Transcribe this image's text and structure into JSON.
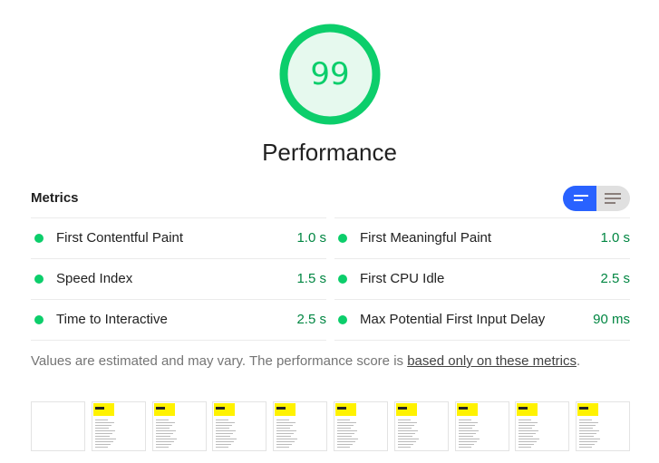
{
  "gauge": {
    "score": "99",
    "category": "Performance",
    "color": "#0cce6b",
    "fill": 0.99
  },
  "metrics": {
    "title": "Metrics",
    "toggle": {
      "active": "expanded-view",
      "accent": "#2962ff"
    },
    "left": [
      {
        "name": "First Contentful Paint",
        "value": "1.0 s"
      },
      {
        "name": "Speed Index",
        "value": "1.5 s"
      },
      {
        "name": "Time to Interactive",
        "value": "2.5 s"
      }
    ],
    "right": [
      {
        "name": "First Meaningful Paint",
        "value": "1.0 s"
      },
      {
        "name": "First CPU Idle",
        "value": "2.5 s"
      },
      {
        "name": "Max Potential First Input Delay",
        "value": "90 ms"
      }
    ],
    "status_color": "#0cce6b"
  },
  "note": {
    "text": "Values are estimated and may vary. The performance score is ",
    "link": "based only on these metrics",
    "end": "."
  },
  "filmstrip": {
    "frames": 10,
    "blank_frames": 1
  }
}
